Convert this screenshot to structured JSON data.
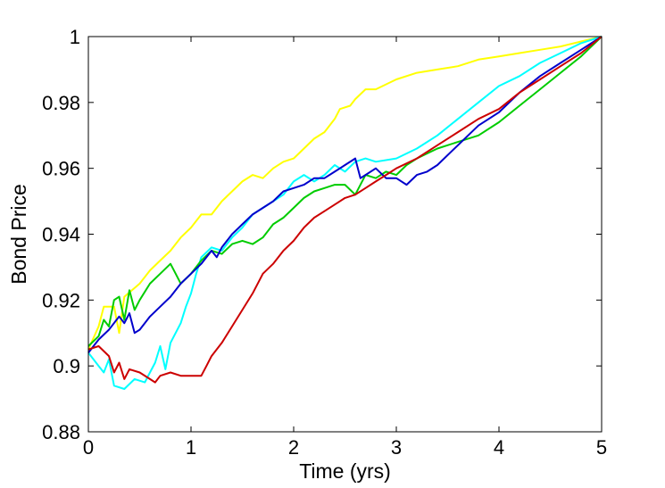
{
  "chart_data": {
    "type": "line",
    "title": "",
    "xlabel": "Time (yrs)",
    "ylabel": "Bond Price",
    "xlim": [
      0,
      5
    ],
    "ylim": [
      0.88,
      1.0
    ],
    "xticks": [
      0,
      1,
      2,
      3,
      4,
      5
    ],
    "yticks": [
      0.88,
      0.9,
      0.92,
      0.94,
      0.96,
      0.98,
      1.0
    ],
    "xtick_labels": [
      "0",
      "1",
      "2",
      "3",
      "4",
      "5"
    ],
    "ytick_labels": [
      "0.88",
      "0.9",
      "0.92",
      "0.94",
      "0.96",
      "0.98",
      "1"
    ],
    "grid": false,
    "legend": "none",
    "series": [
      {
        "color": "#ffff00",
        "points": [
          [
            0,
            0.905
          ],
          [
            0.1,
            0.912
          ],
          [
            0.15,
            0.918
          ],
          [
            0.25,
            0.918
          ],
          [
            0.3,
            0.91
          ],
          [
            0.35,
            0.921
          ],
          [
            0.5,
            0.925
          ],
          [
            0.6,
            0.929
          ],
          [
            0.7,
            0.932
          ],
          [
            0.8,
            0.935
          ],
          [
            0.9,
            0.939
          ],
          [
            1.0,
            0.942
          ],
          [
            1.1,
            0.946
          ],
          [
            1.2,
            0.946
          ],
          [
            1.3,
            0.95
          ],
          [
            1.4,
            0.953
          ],
          [
            1.5,
            0.956
          ],
          [
            1.6,
            0.958
          ],
          [
            1.7,
            0.957
          ],
          [
            1.8,
            0.96
          ],
          [
            1.9,
            0.962
          ],
          [
            2.0,
            0.963
          ],
          [
            2.1,
            0.966
          ],
          [
            2.2,
            0.969
          ],
          [
            2.3,
            0.971
          ],
          [
            2.4,
            0.975
          ],
          [
            2.45,
            0.978
          ],
          [
            2.55,
            0.979
          ],
          [
            2.6,
            0.981
          ],
          [
            2.7,
            0.984
          ],
          [
            2.8,
            0.984
          ],
          [
            3.0,
            0.987
          ],
          [
            3.2,
            0.989
          ],
          [
            3.4,
            0.99
          ],
          [
            3.6,
            0.991
          ],
          [
            3.8,
            0.993
          ],
          [
            4.0,
            0.994
          ],
          [
            4.2,
            0.995
          ],
          [
            4.4,
            0.996
          ],
          [
            4.6,
            0.997
          ],
          [
            4.8,
            0.9985
          ],
          [
            5.0,
            1.0
          ]
        ]
      },
      {
        "color": "#00ffff",
        "points": [
          [
            0,
            0.904
          ],
          [
            0.1,
            0.9
          ],
          [
            0.15,
            0.898
          ],
          [
            0.2,
            0.902
          ],
          [
            0.25,
            0.894
          ],
          [
            0.35,
            0.893
          ],
          [
            0.45,
            0.896
          ],
          [
            0.55,
            0.895
          ],
          [
            0.6,
            0.898
          ],
          [
            0.65,
            0.901
          ],
          [
            0.7,
            0.906
          ],
          [
            0.75,
            0.899
          ],
          [
            0.8,
            0.907
          ],
          [
            0.9,
            0.913
          ],
          [
            0.95,
            0.918
          ],
          [
            1.0,
            0.922
          ],
          [
            1.05,
            0.928
          ],
          [
            1.1,
            0.933
          ],
          [
            1.2,
            0.936
          ],
          [
            1.3,
            0.935
          ],
          [
            1.4,
            0.939
          ],
          [
            1.5,
            0.942
          ],
          [
            1.6,
            0.946
          ],
          [
            1.7,
            0.948
          ],
          [
            1.8,
            0.95
          ],
          [
            1.9,
            0.952
          ],
          [
            2.0,
            0.956
          ],
          [
            2.1,
            0.958
          ],
          [
            2.2,
            0.956
          ],
          [
            2.3,
            0.958
          ],
          [
            2.4,
            0.961
          ],
          [
            2.5,
            0.959
          ],
          [
            2.6,
            0.962
          ],
          [
            2.7,
            0.963
          ],
          [
            2.8,
            0.962
          ],
          [
            3.0,
            0.963
          ],
          [
            3.2,
            0.966
          ],
          [
            3.4,
            0.97
          ],
          [
            3.6,
            0.975
          ],
          [
            3.8,
            0.98
          ],
          [
            4.0,
            0.985
          ],
          [
            4.2,
            0.988
          ],
          [
            4.4,
            0.992
          ],
          [
            4.6,
            0.995
          ],
          [
            4.8,
            0.998
          ],
          [
            5.0,
            1.0
          ]
        ]
      },
      {
        "color": "#00cc00",
        "points": [
          [
            0,
            0.906
          ],
          [
            0.1,
            0.909
          ],
          [
            0.15,
            0.914
          ],
          [
            0.2,
            0.912
          ],
          [
            0.25,
            0.92
          ],
          [
            0.3,
            0.921
          ],
          [
            0.35,
            0.914
          ],
          [
            0.4,
            0.923
          ],
          [
            0.45,
            0.917
          ],
          [
            0.5,
            0.92
          ],
          [
            0.6,
            0.925
          ],
          [
            0.7,
            0.928
          ],
          [
            0.8,
            0.931
          ],
          [
            0.85,
            0.928
          ],
          [
            0.9,
            0.925
          ],
          [
            1.0,
            0.928
          ],
          [
            1.1,
            0.932
          ],
          [
            1.2,
            0.935
          ],
          [
            1.3,
            0.934
          ],
          [
            1.4,
            0.937
          ],
          [
            1.5,
            0.938
          ],
          [
            1.6,
            0.937
          ],
          [
            1.7,
            0.939
          ],
          [
            1.8,
            0.943
          ],
          [
            1.9,
            0.945
          ],
          [
            2.0,
            0.948
          ],
          [
            2.1,
            0.951
          ],
          [
            2.2,
            0.953
          ],
          [
            2.3,
            0.954
          ],
          [
            2.4,
            0.955
          ],
          [
            2.5,
            0.955
          ],
          [
            2.6,
            0.952
          ],
          [
            2.7,
            0.958
          ],
          [
            2.8,
            0.957
          ],
          [
            2.9,
            0.959
          ],
          [
            3.0,
            0.958
          ],
          [
            3.1,
            0.961
          ],
          [
            3.2,
            0.963
          ],
          [
            3.4,
            0.966
          ],
          [
            3.6,
            0.968
          ],
          [
            3.8,
            0.97
          ],
          [
            4.0,
            0.974
          ],
          [
            4.2,
            0.979
          ],
          [
            4.4,
            0.984
          ],
          [
            4.6,
            0.989
          ],
          [
            4.8,
            0.994
          ],
          [
            5.0,
            1.0
          ]
        ]
      },
      {
        "color": "#0000cc",
        "points": [
          [
            0,
            0.904
          ],
          [
            0.1,
            0.908
          ],
          [
            0.2,
            0.911
          ],
          [
            0.3,
            0.915
          ],
          [
            0.35,
            0.913
          ],
          [
            0.4,
            0.916
          ],
          [
            0.45,
            0.91
          ],
          [
            0.5,
            0.911
          ],
          [
            0.6,
            0.915
          ],
          [
            0.7,
            0.918
          ],
          [
            0.8,
            0.921
          ],
          [
            0.9,
            0.925
          ],
          [
            1.0,
            0.928
          ],
          [
            1.1,
            0.931
          ],
          [
            1.2,
            0.935
          ],
          [
            1.25,
            0.933
          ],
          [
            1.3,
            0.936
          ],
          [
            1.4,
            0.94
          ],
          [
            1.5,
            0.943
          ],
          [
            1.6,
            0.946
          ],
          [
            1.7,
            0.948
          ],
          [
            1.8,
            0.95
          ],
          [
            1.9,
            0.953
          ],
          [
            2.0,
            0.954
          ],
          [
            2.1,
            0.955
          ],
          [
            2.2,
            0.957
          ],
          [
            2.3,
            0.957
          ],
          [
            2.4,
            0.959
          ],
          [
            2.5,
            0.961
          ],
          [
            2.6,
            0.963
          ],
          [
            2.65,
            0.957
          ],
          [
            2.7,
            0.958
          ],
          [
            2.8,
            0.96
          ],
          [
            2.9,
            0.957
          ],
          [
            3.0,
            0.957
          ],
          [
            3.1,
            0.955
          ],
          [
            3.2,
            0.958
          ],
          [
            3.3,
            0.959
          ],
          [
            3.4,
            0.961
          ],
          [
            3.6,
            0.967
          ],
          [
            3.8,
            0.973
          ],
          [
            4.0,
            0.977
          ],
          [
            4.2,
            0.983
          ],
          [
            4.4,
            0.988
          ],
          [
            4.6,
            0.992
          ],
          [
            4.8,
            0.996
          ],
          [
            5.0,
            1.0
          ]
        ]
      },
      {
        "color": "#cc0000",
        "points": [
          [
            0,
            0.905
          ],
          [
            0.1,
            0.906
          ],
          [
            0.2,
            0.903
          ],
          [
            0.25,
            0.898
          ],
          [
            0.3,
            0.901
          ],
          [
            0.35,
            0.896
          ],
          [
            0.4,
            0.899
          ],
          [
            0.5,
            0.898
          ],
          [
            0.6,
            0.896
          ],
          [
            0.65,
            0.895
          ],
          [
            0.7,
            0.897
          ],
          [
            0.8,
            0.898
          ],
          [
            0.9,
            0.897
          ],
          [
            1.0,
            0.897
          ],
          [
            1.1,
            0.897
          ],
          [
            1.15,
            0.9
          ],
          [
            1.2,
            0.903
          ],
          [
            1.3,
            0.907
          ],
          [
            1.4,
            0.912
          ],
          [
            1.5,
            0.917
          ],
          [
            1.6,
            0.922
          ],
          [
            1.7,
            0.928
          ],
          [
            1.8,
            0.931
          ],
          [
            1.9,
            0.935
          ],
          [
            2.0,
            0.938
          ],
          [
            2.1,
            0.942
          ],
          [
            2.2,
            0.945
          ],
          [
            2.3,
            0.947
          ],
          [
            2.4,
            0.949
          ],
          [
            2.5,
            0.951
          ],
          [
            2.6,
            0.952
          ],
          [
            2.7,
            0.954
          ],
          [
            2.8,
            0.956
          ],
          [
            2.9,
            0.958
          ],
          [
            3.0,
            0.96
          ],
          [
            3.2,
            0.963
          ],
          [
            3.4,
            0.967
          ],
          [
            3.6,
            0.971
          ],
          [
            3.8,
            0.975
          ],
          [
            4.0,
            0.978
          ],
          [
            4.2,
            0.983
          ],
          [
            4.4,
            0.987
          ],
          [
            4.6,
            0.991
          ],
          [
            4.8,
            0.995
          ],
          [
            5.0,
            1.0
          ]
        ]
      }
    ]
  }
}
